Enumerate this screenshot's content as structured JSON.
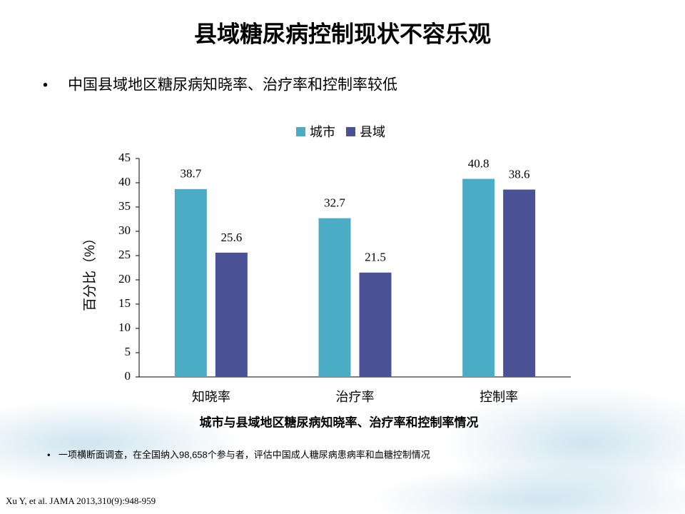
{
  "title": "县域糖尿病控制现状不容乐观",
  "bullet": "中国县域地区糖尿病知晓率、治疗率和控制率较低",
  "chart_data": {
    "type": "bar",
    "y_label": "百分比（%）",
    "caption": "城市与县域地区糖尿病知晓率、治疗率和控制率情况",
    "categories": [
      "知晓率",
      "治疗率",
      "控制率"
    ],
    "series": [
      {
        "name": "城市",
        "color": "#4bacc6",
        "values": [
          38.7,
          32.7,
          40.8
        ]
      },
      {
        "name": "县域",
        "color": "#4a5195",
        "values": [
          25.6,
          21.5,
          38.6
        ]
      }
    ],
    "ylim": [
      0,
      45
    ],
    "yticks": [
      0,
      5,
      10,
      15,
      20,
      25,
      30,
      35,
      40,
      45
    ],
    "legend": "top"
  },
  "note": "一项横断面调查，在全国纳入98,658个参与者，评估中国成人糖尿病患病率和血糖控制情况",
  "reference": "Xu Y, et al. JAMA 2013,310(9):948-959"
}
